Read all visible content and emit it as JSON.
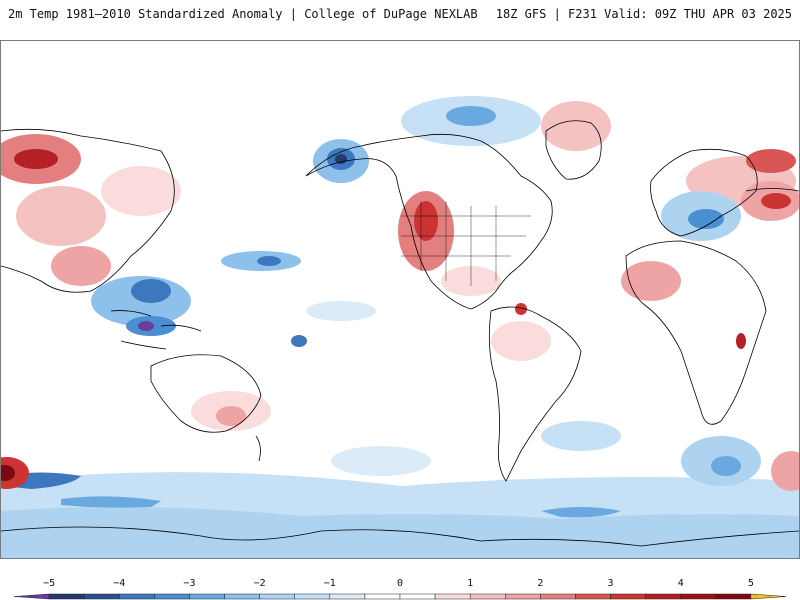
{
  "header": {
    "title_left": "2m Temp 1981–2010 Standardized Anomaly | College of DuPage NEXLAB",
    "title_right": "18Z GFS | F231 Valid: 09Z THU APR 03 2025"
  },
  "map": {
    "projection": "equirectangular",
    "background": "#ffffff",
    "coastline_color": "#000000"
  },
  "colorbar": {
    "levels": [
      -5.5,
      -5,
      -4.5,
      -4,
      -3.5,
      -3,
      -2.5,
      -2,
      -1.5,
      -1,
      -0.5,
      0,
      0.5,
      1,
      1.5,
      2,
      2.5,
      3,
      3.5,
      4,
      4.5,
      5,
      5.5
    ],
    "colors": [
      "#6a3d9a",
      "#243a6b",
      "#2c4f8f",
      "#3d78bf",
      "#4a8fd1",
      "#6aa9e0",
      "#8dc0ea",
      "#aed3f1",
      "#c6e0f5",
      "#dcebf8",
      "#ffffff",
      "#ffffff",
      "#fbdcdc",
      "#f5c2c2",
      "#eea4a4",
      "#e47f7f",
      "#d95555",
      "#cc3333",
      "#b51f26",
      "#9a1016",
      "#7a0a10",
      "#f0c020"
    ],
    "tick_values": [
      -5,
      -4,
      -3,
      -2,
      -1,
      0,
      1,
      2,
      3,
      4,
      5
    ],
    "tick_labels": [
      "−5",
      "−4",
      "−3",
      "−2",
      "−1",
      "0",
      "1",
      "2",
      "3",
      "4",
      "5"
    ]
  }
}
